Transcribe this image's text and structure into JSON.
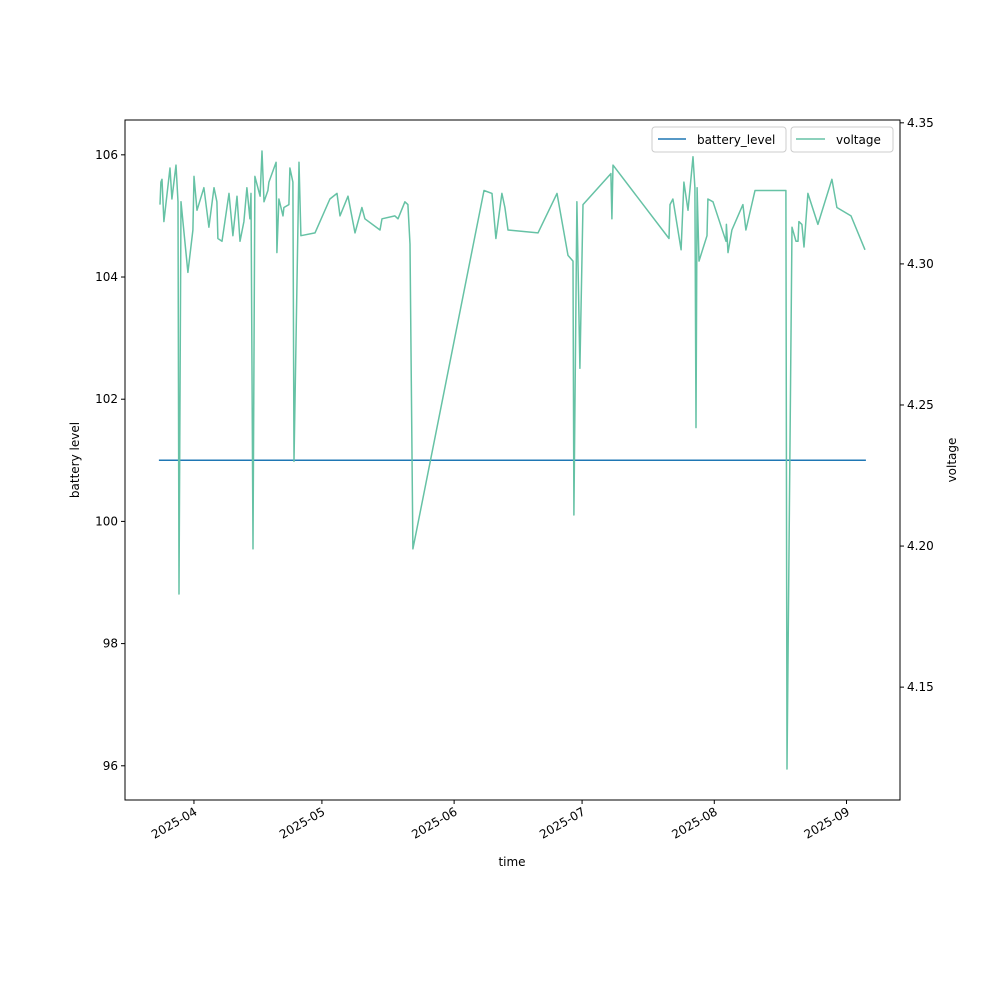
{
  "chart_data": {
    "type": "line",
    "xlabel": "time",
    "ylabel_left": "battery level",
    "ylabel_right": "voltage",
    "x_ticks": [
      "2025-04",
      "2025-05",
      "2025-06",
      "2025-07",
      "2025-08",
      "2025-09"
    ],
    "xlim": [
      "2025-03-15T20:00",
      "2025-09-13T13:00"
    ],
    "ylim_left": [
      95.44,
      106.57
    ],
    "ylim_right": [
      4.11,
      4.351
    ],
    "y_ticks_left": [
      96,
      98,
      100,
      102,
      104,
      106
    ],
    "y_ticks_right": [
      4.15,
      4.2,
      4.25,
      4.3,
      4.35
    ],
    "grid": false,
    "legend_placement": "top-right",
    "series": [
      {
        "name": "battery_level",
        "axis": "left",
        "color": "#1f77b4",
        "x": [
          "2025-03-23T19:00",
          "2025-09-05T13:00"
        ],
        "y": [
          101,
          101
        ]
      },
      {
        "name": "voltage",
        "axis": "right",
        "color": "#66c2a5",
        "x": [
          "2025-03-24T01:00",
          "2025-03-24T06:00",
          "2025-03-24T12:00",
          "2025-03-24T23:00",
          "2025-03-26T09:00",
          "2025-03-26T20:00",
          "2025-03-27T19:00",
          "2025-03-28T06:00",
          "2025-03-28T12:00",
          "2025-03-28T23:00",
          "2025-03-30T14:00",
          "2025-03-31T18:00",
          "2025-04-01T00:00",
          "2025-04-01T17:00",
          "2025-04-03T08:00",
          "2025-04-04T12:00",
          "2025-04-05T17:00",
          "2025-04-06T09:00",
          "2025-04-06T15:00",
          "2025-04-07T14:00",
          "2025-04-09T05:00",
          "2025-04-10T03:00",
          "2025-04-11T02:00",
          "2025-04-11T19:00",
          "2025-04-12T17:00",
          "2025-04-13T10:00",
          "2025-04-14T03:00",
          "2025-04-14T09:00",
          "2025-04-14T20:00",
          "2025-04-15T07:00",
          "2025-04-16T12:00",
          "2025-04-16T23:00",
          "2025-04-17T10:00",
          "2025-04-18T08:00",
          "2025-04-18T14:00",
          "2025-04-20T06:00",
          "2025-04-20T11:00",
          "2025-04-20T22:00",
          "2025-04-21T21:00",
          "2025-04-22T02:00",
          "2025-04-23T06:00",
          "2025-04-23T12:00",
          "2025-04-24T05:00",
          "2025-04-24T11:00",
          "2025-04-25T15:00",
          "2025-04-26T02:00",
          "2025-04-29T09:00",
          "2025-05-02T21:00",
          "2025-05-04T13:00",
          "2025-05-05T06:00",
          "2025-05-07T03:00",
          "2025-05-08T18:00",
          "2025-05-10T09:00",
          "2025-05-11T02:00",
          "2025-05-14T15:00",
          "2025-05-15T02:00",
          "2025-05-18T03:00",
          "2025-05-18T20:00",
          "2025-05-20T11:00",
          "2025-05-21T04:00",
          "2025-05-21T16:00",
          "2025-05-22T08:00",
          "2025-06-08T00:00",
          "2025-06-09T21:00",
          "2025-06-10T19:00",
          "2025-06-12T05:00",
          "2025-06-12T22:00",
          "2025-06-13T15:00",
          "2025-06-20T16:00",
          "2025-06-25T03:00",
          "2025-06-27T17:00",
          "2025-06-28T21:00",
          "2025-06-29T02:00",
          "2025-06-29T19:00",
          "2025-06-30T12:00",
          "2025-07-01T05:00",
          "2025-07-07T18:00",
          "2025-07-08T00:00",
          "2025-07-08T06:00",
          "2025-07-21T09:00",
          "2025-07-21T15:00",
          "2025-07-22T07:00",
          "2025-07-24T05:00",
          "2025-07-24T21:00",
          "2025-07-25T20:00",
          "2025-07-27T00:00",
          "2025-07-27T11:00",
          "2025-07-27T17:00",
          "2025-07-27T23:00",
          "2025-07-28T10:00",
          "2025-07-30T07:00",
          "2025-07-30T12:00",
          "2025-07-31T17:00",
          "2025-08-03T18:00",
          "2025-08-03T20:00",
          "2025-08-04T05:00",
          "2025-08-05T03:00",
          "2025-08-07T17:00",
          "2025-08-08T10:00",
          "2025-08-10T13:00",
          "2025-08-17T19:00",
          "2025-08-18T01:00",
          "2025-08-19T05:00",
          "2025-08-20T04:00",
          "2025-08-20T15:00",
          "2025-08-20T20:00",
          "2025-08-21T13:00",
          "2025-08-22T01:00",
          "2025-08-22T23:00",
          "2025-08-25T07:00",
          "2025-08-28T14:00",
          "2025-08-29T18:00",
          "2025-09-02T01:00",
          "2025-09-05T08:00"
        ],
        "y": [
          4.321,
          4.329,
          4.33,
          4.315,
          4.334,
          4.323,
          4.335,
          4.322,
          4.183,
          4.322,
          4.297,
          4.312,
          4.331,
          4.319,
          4.327,
          4.313,
          4.327,
          4.322,
          4.309,
          4.308,
          4.325,
          4.31,
          4.324,
          4.308,
          4.315,
          4.327,
          4.316,
          4.325,
          4.199,
          4.331,
          4.324,
          4.34,
          4.322,
          4.326,
          4.329,
          4.336,
          4.304,
          4.323,
          4.317,
          4.32,
          4.321,
          4.334,
          4.329,
          4.23,
          4.336,
          4.31,
          4.311,
          4.323,
          4.325,
          4.317,
          4.324,
          4.311,
          4.32,
          4.316,
          4.312,
          4.316,
          4.317,
          4.316,
          4.322,
          4.321,
          4.307,
          4.199,
          4.326,
          4.325,
          4.309,
          4.325,
          4.32,
          4.312,
          4.311,
          4.325,
          4.303,
          4.301,
          4.211,
          4.322,
          4.263,
          4.321,
          4.332,
          4.316,
          4.335,
          4.309,
          4.321,
          4.323,
          4.305,
          4.329,
          4.319,
          4.338,
          4.327,
          4.242,
          4.327,
          4.301,
          4.31,
          4.323,
          4.322,
          4.308,
          4.314,
          4.304,
          4.312,
          4.321,
          4.312,
          4.326,
          4.326,
          4.121,
          4.313,
          4.308,
          4.308,
          4.315,
          4.314,
          4.306,
          4.325,
          4.314,
          4.33,
          4.32,
          4.317,
          4.305
        ]
      }
    ]
  }
}
